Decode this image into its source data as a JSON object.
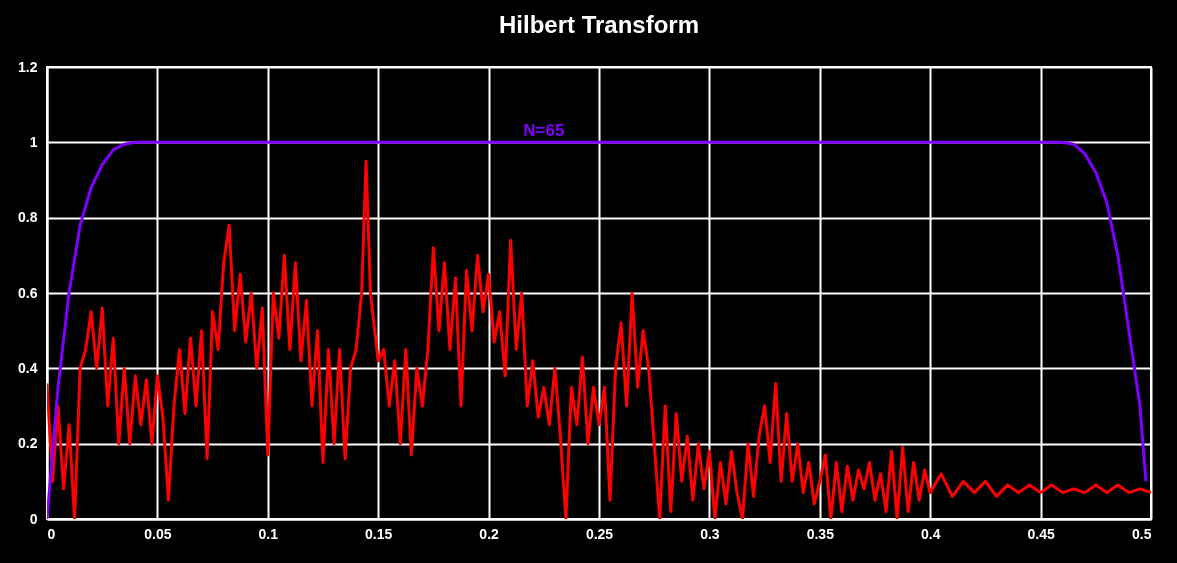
{
  "chart_data": {
    "type": "line",
    "title": "Hilbert Transform",
    "xlim": [
      0,
      0.5
    ],
    "xticks": [
      0,
      0.05,
      0.1,
      0.15,
      0.2,
      0.25,
      0.3,
      0.35,
      0.4,
      0.45,
      0.5
    ],
    "ylim": [
      0,
      1.2
    ],
    "yticks": [
      0,
      0.2,
      0.4,
      0.6,
      0.8,
      1,
      1.2
    ],
    "grid": true,
    "annotations": [
      {
        "text": "N=65",
        "x": 0.225,
        "y": 1
      }
    ],
    "series": [
      {
        "color": "#ff0000",
        "x": [
          0,
          0.0025,
          0.005,
          0.0075,
          0.01,
          0.0125,
          0.015,
          0.0175,
          0.02,
          0.0225,
          0.025,
          0.0275,
          0.03,
          0.0325,
          0.035,
          0.0375,
          0.04,
          0.0425,
          0.045,
          0.0475,
          0.05,
          0.0525,
          0.055,
          0.0575,
          0.06,
          0.0625,
          0.065,
          0.0675,
          0.07,
          0.0725,
          0.075,
          0.0775,
          0.08,
          0.0825,
          0.085,
          0.0875,
          0.09,
          0.0925,
          0.095,
          0.0975,
          0.1,
          0.1025,
          0.105,
          0.1075,
          0.11,
          0.1125,
          0.115,
          0.1175,
          0.12,
          0.1225,
          0.125,
          0.1275,
          0.13,
          0.1325,
          0.135,
          0.1375,
          0.14,
          0.1425,
          0.1445,
          0.1465,
          0.15,
          0.1525,
          0.155,
          0.1575,
          0.16,
          0.1625,
          0.165,
          0.1675,
          0.17,
          0.1725,
          0.175,
          0.1775,
          0.18,
          0.1825,
          0.185,
          0.1875,
          0.19,
          0.1925,
          0.195,
          0.1975,
          0.2,
          0.2025,
          0.205,
          0.2075,
          0.21,
          0.2125,
          0.215,
          0.2175,
          0.22,
          0.2225,
          0.225,
          0.2275,
          0.23,
          0.2325,
          0.235,
          0.2375,
          0.24,
          0.2425,
          0.245,
          0.2475,
          0.25,
          0.2525,
          0.255,
          0.2575,
          0.26,
          0.2625,
          0.265,
          0.2675,
          0.27,
          0.2725,
          0.275,
          0.2775,
          0.28,
          0.2825,
          0.285,
          0.2875,
          0.29,
          0.2925,
          0.295,
          0.2975,
          0.3,
          0.3025,
          0.305,
          0.3075,
          0.31,
          0.3125,
          0.315,
          0.3175,
          0.32,
          0.3225,
          0.325,
          0.3275,
          0.33,
          0.3325,
          0.335,
          0.3375,
          0.34,
          0.3425,
          0.345,
          0.3475,
          0.35,
          0.3525,
          0.355,
          0.3575,
          0.36,
          0.3625,
          0.365,
          0.3675,
          0.37,
          0.3725,
          0.375,
          0.3775,
          0.38,
          0.3825,
          0.385,
          0.3875,
          0.39,
          0.3925,
          0.395,
          0.3975,
          0.4,
          0.405,
          0.41,
          0.415,
          0.42,
          0.425,
          0.43,
          0.435,
          0.44,
          0.445,
          0.45,
          0.455,
          0.46,
          0.465,
          0.47,
          0.475,
          0.48,
          0.485,
          0.49,
          0.495,
          0.5
        ],
        "values": [
          0.36,
          0.1,
          0.3,
          0.08,
          0.25,
          0,
          0.4,
          0.45,
          0.55,
          0.4,
          0.56,
          0.3,
          0.48,
          0.2,
          0.4,
          0.2,
          0.38,
          0.25,
          0.37,
          0.2,
          0.38,
          0.27,
          0.05,
          0.3,
          0.45,
          0.28,
          0.48,
          0.3,
          0.5,
          0.16,
          0.55,
          0.45,
          0.68,
          0.78,
          0.5,
          0.65,
          0.47,
          0.6,
          0.4,
          0.56,
          0.17,
          0.6,
          0.48,
          0.7,
          0.45,
          0.68,
          0.42,
          0.58,
          0.3,
          0.5,
          0.15,
          0.45,
          0.2,
          0.45,
          0.16,
          0.4,
          0.45,
          0.6,
          0.95,
          0.6,
          0.42,
          0.45,
          0.3,
          0.42,
          0.2,
          0.45,
          0.17,
          0.4,
          0.3,
          0.45,
          0.72,
          0.5,
          0.68,
          0.45,
          0.64,
          0.3,
          0.66,
          0.5,
          0.7,
          0.55,
          0.65,
          0.47,
          0.55,
          0.38,
          0.74,
          0.45,
          0.6,
          0.3,
          0.42,
          0.27,
          0.35,
          0.25,
          0.4,
          0.22,
          0,
          0.35,
          0.25,
          0.43,
          0.2,
          0.35,
          0.25,
          0.35,
          0.05,
          0.4,
          0.52,
          0.3,
          0.6,
          0.35,
          0.5,
          0.4,
          0.2,
          0,
          0.3,
          0.02,
          0.28,
          0.1,
          0.22,
          0.05,
          0.2,
          0.08,
          0.18,
          0,
          0.15,
          0.04,
          0.18,
          0.07,
          0,
          0.2,
          0.06,
          0.22,
          0.3,
          0.15,
          0.36,
          0.1,
          0.28,
          0.1,
          0.2,
          0.07,
          0.15,
          0.04,
          0.1,
          0.17,
          0,
          0.15,
          0.02,
          0.14,
          0.05,
          0.13,
          0.08,
          0.15,
          0.05,
          0.12,
          0.02,
          0.18,
          0,
          0.19,
          0.02,
          0.15,
          0.05,
          0.13,
          0.07,
          0.12,
          0.06,
          0.1,
          0.07,
          0.1,
          0.06,
          0.09,
          0.07,
          0.09,
          0.07,
          0.09,
          0.07,
          0.08,
          0.07,
          0.09,
          0.07,
          0.09,
          0.07,
          0.08,
          0.07
        ]
      },
      {
        "color": "#7f00ff",
        "x": [
          0,
          0.005,
          0.01,
          0.015,
          0.02,
          0.025,
          0.03,
          0.035,
          0.04,
          0.46,
          0.465,
          0.47,
          0.475,
          0.48,
          0.485,
          0.49,
          0.495,
          0.4977
        ],
        "values": [
          0,
          0.35,
          0.6,
          0.78,
          0.88,
          0.94,
          0.98,
          0.995,
          1,
          1,
          0.995,
          0.97,
          0.92,
          0.84,
          0.7,
          0.5,
          0.3,
          0.1
        ]
      }
    ]
  }
}
